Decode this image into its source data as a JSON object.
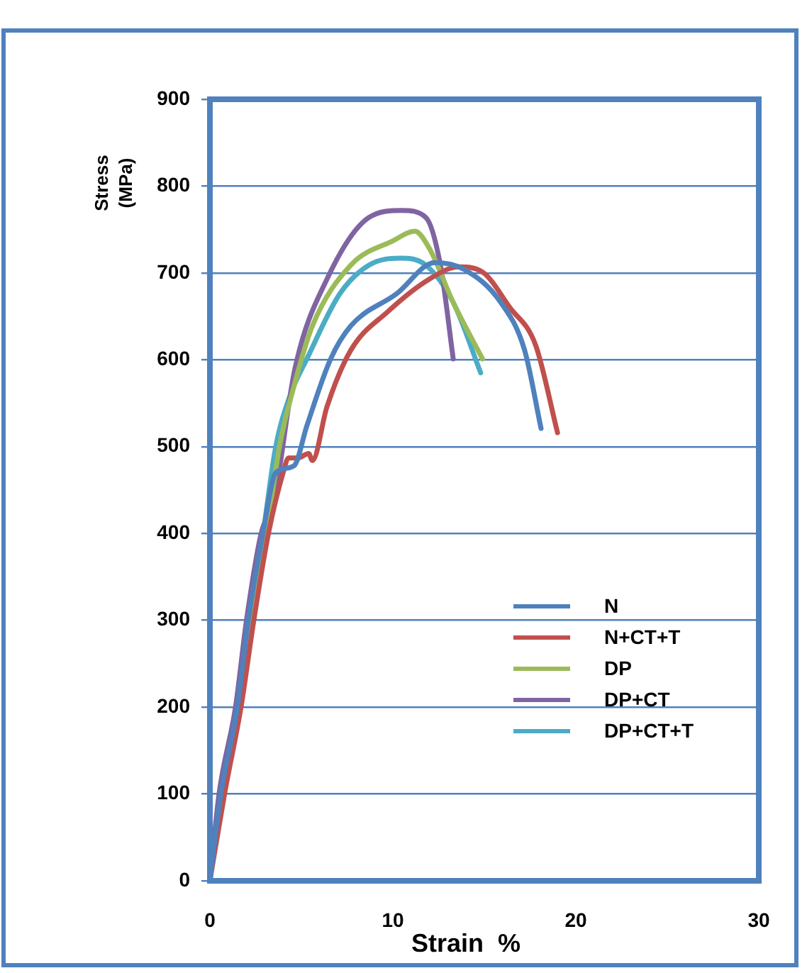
{
  "chart_data": {
    "type": "line",
    "xlabel": "Strain  %",
    "ylabel": "Stress\n(MPa)",
    "xlim": [
      0,
      30
    ],
    "xticks": [
      0,
      10,
      20,
      30
    ],
    "ylim": [
      0,
      900
    ],
    "yticks": [
      0,
      100,
      200,
      300,
      400,
      500,
      600,
      700,
      800,
      900
    ],
    "grid": "y",
    "legend": "bottom right",
    "marker": "none",
    "line_style": "solid",
    "series": [
      {
        "name": "N",
        "color": "#4f81bd",
        "x": [
          0,
          0.6,
          1.5,
          2.1,
          2.9,
          3.6,
          4.6,
          5.3,
          6.6,
          7.7,
          10.2,
          12.3,
          13.9,
          15.9,
          17.2,
          18.1
        ],
        "values": [
          0,
          100,
          200,
          300,
          400,
          470,
          478,
          524,
          601,
          639,
          676,
          712,
          704,
          666,
          611,
          521
        ]
      },
      {
        "name": "N+CT+T",
        "color": "#c0504d",
        "x": [
          0,
          0.8,
          1.7,
          2.4,
          3.2,
          4.0,
          4.3,
          4.8,
          5.4,
          5.6,
          6.4,
          7.7,
          9.7,
          12,
          13.6,
          14.9,
          16.4,
          17.8,
          19
        ],
        "values": [
          0,
          100,
          200,
          300,
          400,
          470,
          487,
          487,
          492,
          484,
          546,
          611,
          655,
          693,
          707,
          701,
          660,
          617,
          516
        ]
      },
      {
        "name": "DP",
        "color": "#9bbb59",
        "x": [
          0.75,
          1.65,
          2.3,
          3.1,
          3.8,
          4.6,
          5.6,
          7.7,
          10,
          11.2,
          12,
          13.3,
          14.9
        ],
        "values": [
          100,
          200,
          300,
          400,
          500,
          570,
          639,
          709,
          737,
          748,
          728,
          666,
          601
        ]
      },
      {
        "name": "DP+CT",
        "color": "#8064a2",
        "x": [
          0,
          0.5,
          1.4,
          2.0,
          2.8,
          3.5,
          4.65,
          6.4,
          8.7,
          10.5,
          11.8,
          12.6,
          13.3
        ],
        "values": [
          0,
          100,
          200,
          300,
          400,
          438,
          590,
          693,
          764,
          772,
          764,
          709,
          601
        ]
      },
      {
        "name": "DP+CT+T",
        "color": "#4bacc6",
        "x": [
          0,
          0.6,
          1.5,
          2.1,
          2.9,
          3.6,
          4.4,
          5.3,
          7.1,
          8.7,
          10.4,
          11.8,
          13.3,
          14.8
        ],
        "values": [
          0,
          100,
          200,
          300,
          400,
          500,
          560,
          601,
          676,
          709,
          717,
          709,
          666,
          585
        ]
      }
    ]
  }
}
